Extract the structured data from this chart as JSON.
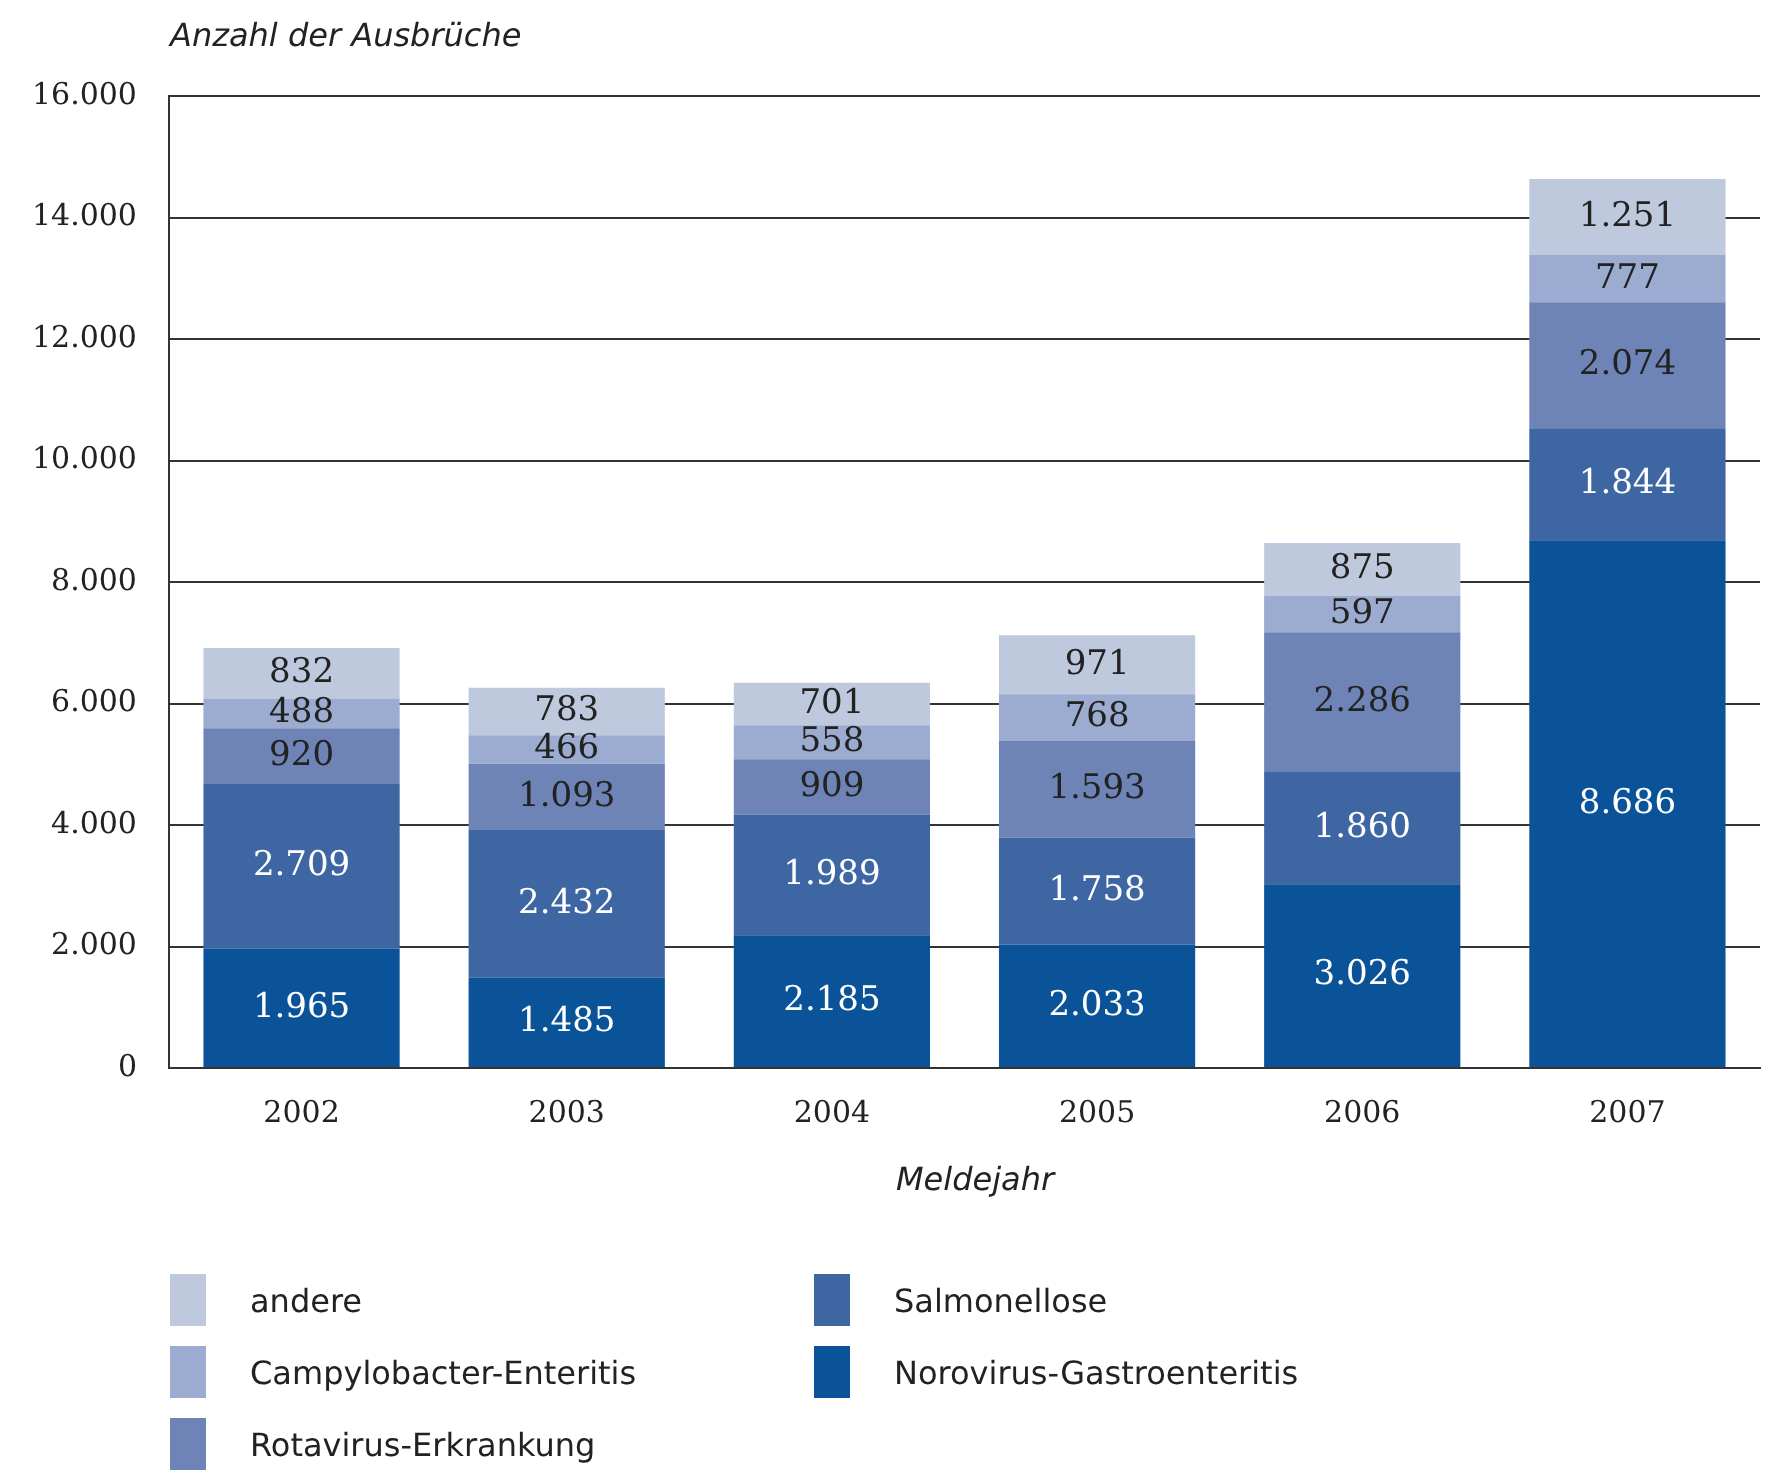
{
  "chart_data": {
    "type": "bar",
    "stacked": true,
    "ylabel": "Anzahl der Ausbrüche",
    "xlabel": "Meldejahr",
    "categories": [
      "2002",
      "2003",
      "2004",
      "2005",
      "2006",
      "2007"
    ],
    "ylim": [
      0,
      16000
    ],
    "yticks": [
      {
        "value": 0,
        "label": "0"
      },
      {
        "value": 2000,
        "label": "2.000"
      },
      {
        "value": 4000,
        "label": "4.000"
      },
      {
        "value": 6000,
        "label": "6.000"
      },
      {
        "value": 8000,
        "label": "8.000"
      },
      {
        "value": 10000,
        "label": "10.000"
      },
      {
        "value": 12000,
        "label": "12.000"
      },
      {
        "value": 14000,
        "label": "14.000"
      },
      {
        "value": 16000,
        "label": "16.000"
      }
    ],
    "grid": "y",
    "legend": "bottom",
    "series": [
      {
        "name": "Norovirus-Gastroenteritis",
        "color": "#0a5398",
        "values": [
          1965,
          1485,
          2185,
          2033,
          3026,
          8686
        ],
        "value_labels": [
          "1.965",
          "1.485",
          "2.185",
          "2.033",
          "3.026",
          "8.686"
        ]
      },
      {
        "name": "Salmonellose",
        "color": "#3d66a3",
        "values": [
          2709,
          2432,
          1989,
          1758,
          1860,
          1844
        ],
        "value_labels": [
          "2.709",
          "2.432",
          "1.989",
          "1.758",
          "1.860",
          "1.844"
        ]
      },
      {
        "name": "Rotavirus-Erkrankung",
        "color": "#6e84b6",
        "values": [
          920,
          1093,
          909,
          1593,
          2286,
          2074
        ],
        "value_labels": [
          "920",
          "1.093",
          "909",
          "1.593",
          "2.286",
          "2.074"
        ]
      },
      {
        "name": "Campylobacter-Enteritis",
        "color": "#9cabd0",
        "values": [
          488,
          466,
          558,
          768,
          597,
          777
        ],
        "value_labels": [
          "488",
          "466",
          "558",
          "768",
          "597",
          "777"
        ]
      },
      {
        "name": "andere",
        "color": "#bfc9de",
        "values": [
          832,
          783,
          701,
          971,
          875,
          1251
        ],
        "value_labels": [
          "832",
          "783",
          "701",
          "971",
          "875",
          "1.251"
        ]
      }
    ]
  }
}
